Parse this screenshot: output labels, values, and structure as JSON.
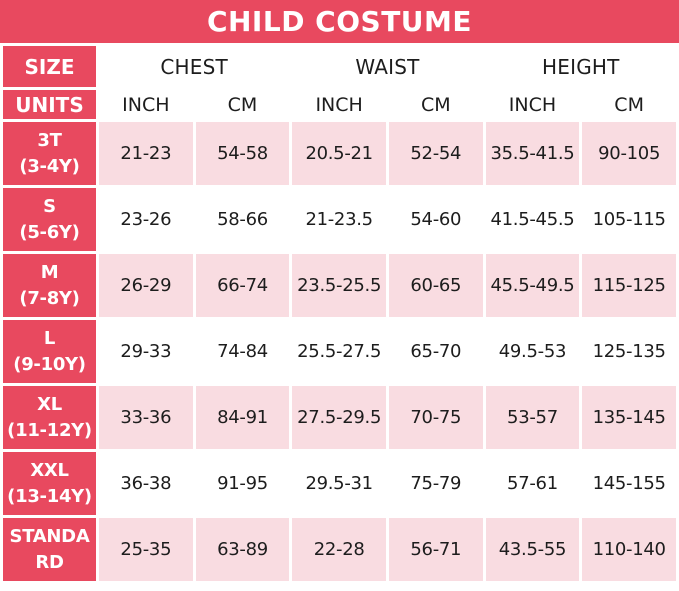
{
  "title": "CHILD COSTUME",
  "colors": {
    "accent_red": "#e8495f",
    "tint_pink": "#f9dce1",
    "text_dark": "#1d1d1d",
    "background": "#ffffff"
  },
  "header": {
    "size_label": "SIZE",
    "units_label": "UNITS",
    "groups": [
      "CHEST",
      "WAIST",
      "HEIGHT"
    ],
    "units": [
      "INCH",
      "CM",
      "INCH",
      "CM",
      "INCH",
      "CM"
    ]
  },
  "chart_data": {
    "type": "table",
    "title": "CHILD COSTUME",
    "columns": [
      "SIZE",
      "CHEST INCH",
      "CHEST CM",
      "WAIST INCH",
      "WAIST CM",
      "HEIGHT INCH",
      "HEIGHT CM"
    ],
    "rows": [
      {
        "size": "3T (3-4Y)",
        "size_lines": [
          "3T",
          "(3-4Y)"
        ],
        "tinted": true,
        "values": [
          "21-23",
          "54-58",
          "20.5-21",
          "52-54",
          "35.5-41.5",
          "90-105"
        ]
      },
      {
        "size": "S (5-6Y)",
        "size_lines": [
          "S",
          "(5-6Y)"
        ],
        "tinted": false,
        "values": [
          "23-26",
          "58-66",
          "21-23.5",
          "54-60",
          "41.5-45.5",
          "105-115"
        ]
      },
      {
        "size": "M (7-8Y)",
        "size_lines": [
          "M",
          "(7-8Y)"
        ],
        "tinted": true,
        "values": [
          "26-29",
          "66-74",
          "23.5-25.5",
          "60-65",
          "45.5-49.5",
          "115-125"
        ]
      },
      {
        "size": "L (9-10Y)",
        "size_lines": [
          "L",
          "(9-10Y)"
        ],
        "tinted": false,
        "values": [
          "29-33",
          "74-84",
          "25.5-27.5",
          "65-70",
          "49.5-53",
          "125-135"
        ]
      },
      {
        "size": "XL (11-12Y)",
        "size_lines": [
          "XL",
          "(11-12Y)"
        ],
        "tinted": true,
        "values": [
          "33-36",
          "84-91",
          "27.5-29.5",
          "70-75",
          "53-57",
          "135-145"
        ]
      },
      {
        "size": "XXL (13-14Y)",
        "size_lines": [
          "XXL",
          "(13-14Y)"
        ],
        "tinted": false,
        "values": [
          "36-38",
          "91-95",
          "29.5-31",
          "75-79",
          "57-61",
          "145-155"
        ]
      },
      {
        "size": "STANDARD",
        "size_lines": [
          "STANDA",
          "RD"
        ],
        "tinted": true,
        "values": [
          "25-35",
          "63-89",
          "22-28",
          "56-71",
          "43.5-55",
          "110-140"
        ]
      }
    ]
  }
}
